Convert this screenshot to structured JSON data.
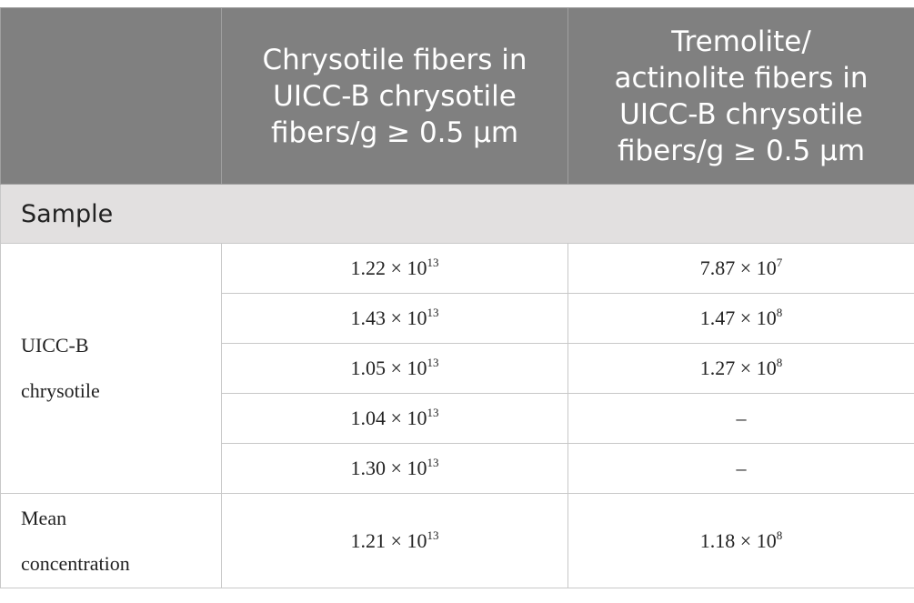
{
  "table": {
    "header": [
      [],
      [
        "Chrysotile fibers in",
        "UICC-B chrysotile",
        "fibers/g ≥ 0.5 μm"
      ],
      [
        "Tremolite/",
        "actinolite fibers in",
        "UICC-B chrysotile",
        "fibers/g ≥ 0.5 μm"
      ]
    ],
    "section": "Sample",
    "groups": [
      {
        "label": [
          "UICC-B",
          "chrysotile"
        ],
        "rows": [
          [
            {
              "base": "1.22 × 10",
              "sup": "13"
            },
            {
              "base": "7.87 × 10",
              "sup": "7"
            }
          ],
          [
            {
              "base": "1.43 × 10",
              "sup": "13"
            },
            {
              "base": "1.47 × 10",
              "sup": "8"
            }
          ],
          [
            {
              "base": "1.05 × 10",
              "sup": "13"
            },
            {
              "base": "1.27 × 10",
              "sup": "8"
            }
          ],
          [
            {
              "base": "1.04 × 10",
              "sup": "13"
            },
            {
              "base": "–"
            }
          ],
          [
            {
              "base": "1.30 × 10",
              "sup": "13"
            },
            {
              "base": "–"
            }
          ]
        ]
      },
      {
        "label": [
          "Mean",
          "concentration"
        ],
        "rows": [
          [
            {
              "base": "1.21 × 10",
              "sup": "13"
            },
            {
              "base": "1.18 × 10",
              "sup": "8"
            }
          ]
        ]
      }
    ]
  }
}
